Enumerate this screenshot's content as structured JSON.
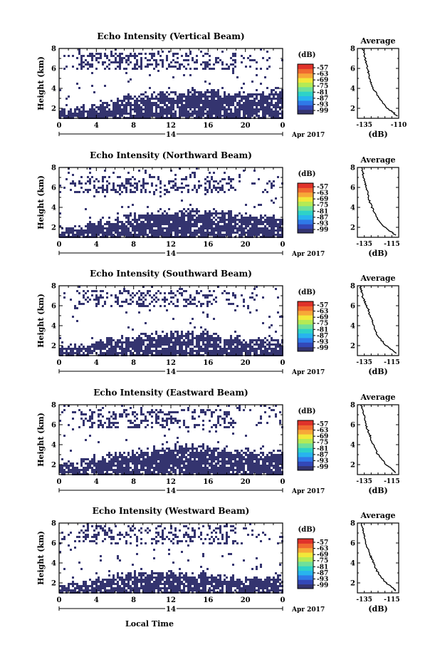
{
  "colors": {
    "background": "#ffffff",
    "echo_fill": "#34346f",
    "axis": "#000000",
    "colorbar": [
      "#34346f",
      "#3348b8",
      "#2f79e8",
      "#28b4ee",
      "#2ed2c8",
      "#6fe09a",
      "#b4ea55",
      "#f2e83a",
      "#f7a838",
      "#f06a30",
      "#e0322a"
    ]
  },
  "shared": {
    "x_label": "Local Time",
    "date_label": "Apr 2017",
    "day_label": "14",
    "x_ticks": [
      "0",
      "4",
      "8",
      "12",
      "16",
      "20",
      "0"
    ],
    "y_label": "Height (km)",
    "y_ticks": [
      "2",
      "4",
      "6",
      "8"
    ],
    "colorbar_unit": "(dB)",
    "colorbar_ticks": [
      "-57",
      "-63",
      "-69",
      "-75",
      "-81",
      "-87",
      "-93",
      "-99"
    ],
    "avg_title": "Average",
    "avg_xlabel": "(dB)",
    "avg_y_ticks": [
      "2",
      "4",
      "6",
      "8"
    ]
  },
  "panels": [
    {
      "title": "Echo Intensity (Vertical Beam)",
      "avg_ticks": [
        "-135",
        "-110"
      ]
    },
    {
      "title": "Echo Intensity (Northward Beam)",
      "avg_ticks": [
        "-135",
        "-115"
      ]
    },
    {
      "title": "Echo Intensity (Southward Beam)",
      "avg_ticks": [
        "-135",
        "-115"
      ]
    },
    {
      "title": "Echo Intensity (Eastward Beam)",
      "avg_ticks": [
        "-135",
        "-115"
      ]
    },
    {
      "title": "Echo Intensity (Westward Beam)",
      "avg_ticks": [
        "-135",
        "-115"
      ]
    }
  ],
  "chart_data": [
    {
      "type": "heatmap",
      "title": "Echo Intensity (Vertical Beam)",
      "xlabel": "Local Time",
      "ylabel": "Height (km)",
      "xlim": [
        0,
        24
      ],
      "ylim": [
        1,
        8
      ],
      "lower_layer_top_km": [
        2.0,
        2.2,
        2.4,
        2.6,
        2.8,
        3.0,
        3.2,
        3.3,
        3.4,
        3.5,
        3.6,
        3.7,
        3.8,
        3.9,
        3.9,
        3.9,
        3.9,
        3.8,
        3.8,
        3.7,
        3.7,
        3.8,
        3.9,
        4.0
      ],
      "upper_layer_km": [
        6.0,
        7.6
      ]
    },
    {
      "type": "line",
      "title": "Average",
      "xlabel": "(dB)",
      "xlim": [
        -140,
        -110
      ],
      "ylim": [
        1,
        8
      ],
      "series": [
        {
          "x": [
            -136,
            -135,
            -134,
            -133,
            -132,
            -131,
            -130,
            -128,
            -125,
            -122,
            -118,
            -114,
            -111
          ],
          "y": [
            8.0,
            7.4,
            6.8,
            6.2,
            5.6,
            5.0,
            4.5,
            3.9,
            3.2,
            2.6,
            2.0,
            1.6,
            1.2
          ]
        }
      ]
    },
    {
      "type": "heatmap",
      "title": "Echo Intensity (Northward Beam)",
      "xlabel": "Local Time",
      "ylabel": "Height (km)",
      "xlim": [
        0,
        24
      ],
      "ylim": [
        1,
        8
      ],
      "lower_layer_top_km": [
        2.2,
        2.3,
        2.5,
        2.6,
        2.8,
        3.0,
        3.2,
        3.4,
        3.5,
        3.6,
        3.7,
        3.8,
        3.8,
        3.9,
        3.9,
        3.8,
        3.8,
        3.7,
        3.6,
        3.5,
        3.4,
        3.3,
        3.2,
        3.0
      ],
      "upper_layer_km": [
        5.6,
        7.2
      ]
    },
    {
      "type": "line",
      "title": "Average",
      "xlabel": "(dB)",
      "xlim": [
        -140,
        -110
      ],
      "ylim": [
        1,
        8
      ],
      "series": [
        {
          "x": [
            -137,
            -136,
            -135,
            -134,
            -133,
            -132,
            -131,
            -129,
            -127,
            -124,
            -120,
            -116,
            -112
          ],
          "y": [
            8.0,
            7.4,
            6.8,
            6.2,
            5.6,
            5.0,
            4.5,
            3.9,
            3.2,
            2.6,
            2.0,
            1.6,
            1.2
          ]
        }
      ]
    },
    {
      "type": "heatmap",
      "title": "Echo Intensity (Southward Beam)",
      "xlabel": "Local Time",
      "ylabel": "Height (km)",
      "xlim": [
        0,
        24
      ],
      "ylim": [
        1,
        8
      ],
      "lower_layer_top_km": [
        2.0,
        2.1,
        2.3,
        2.5,
        2.7,
        2.9,
        3.0,
        3.1,
        3.2,
        3.3,
        3.4,
        3.5,
        3.5,
        3.5,
        3.4,
        3.4,
        3.3,
        3.2,
        3.1,
        3.0,
        2.9,
        2.8,
        2.8,
        2.9
      ],
      "upper_layer_km": [
        6.0,
        7.6
      ]
    },
    {
      "type": "line",
      "title": "Average",
      "xlabel": "(dB)",
      "xlim": [
        -140,
        -110
      ],
      "ylim": [
        1,
        8
      ],
      "series": [
        {
          "x": [
            -138,
            -137,
            -136,
            -134,
            -132,
            -131,
            -129,
            -128,
            -126,
            -123,
            -119,
            -115,
            -112
          ],
          "y": [
            8.0,
            7.4,
            6.8,
            6.2,
            5.6,
            5.0,
            4.5,
            3.9,
            3.2,
            2.6,
            2.0,
            1.6,
            1.2
          ]
        }
      ]
    },
    {
      "type": "heatmap",
      "title": "Echo Intensity (Eastward Beam)",
      "xlabel": "Local Time",
      "ylabel": "Height (km)",
      "xlim": [
        0,
        24
      ],
      "ylim": [
        1,
        8
      ],
      "lower_layer_top_km": [
        2.3,
        2.4,
        2.6,
        2.8,
        3.0,
        3.2,
        3.4,
        3.5,
        3.6,
        3.7,
        3.8,
        3.9,
        4.0,
        4.0,
        4.0,
        4.0,
        3.9,
        3.8,
        3.7,
        3.6,
        3.5,
        3.4,
        3.5,
        3.7
      ],
      "upper_layer_km": [
        5.8,
        7.6
      ]
    },
    {
      "type": "line",
      "title": "Average",
      "xlabel": "(dB)",
      "xlim": [
        -140,
        -110
      ],
      "ylim": [
        1,
        8
      ],
      "series": [
        {
          "x": [
            -137,
            -136,
            -135,
            -134,
            -133,
            -131,
            -130,
            -128,
            -126,
            -123,
            -119,
            -115,
            -112
          ],
          "y": [
            8.0,
            7.4,
            6.8,
            6.2,
            5.6,
            5.0,
            4.5,
            3.9,
            3.2,
            2.6,
            2.0,
            1.6,
            1.2
          ]
        }
      ]
    },
    {
      "type": "heatmap",
      "title": "Echo Intensity (Westward Beam)",
      "xlabel": "Local Time",
      "ylabel": "Height (km)",
      "xlim": [
        0,
        24
      ],
      "ylim": [
        1,
        8
      ],
      "lower_layer_top_km": [
        2.0,
        2.1,
        2.3,
        2.5,
        2.7,
        2.9,
        3.0,
        3.1,
        3.2,
        3.2,
        3.3,
        3.3,
        3.3,
        3.2,
        3.2,
        3.1,
        3.0,
        2.9,
        2.8,
        2.8,
        2.7,
        2.7,
        2.8,
        2.9
      ],
      "upper_layer_km": [
        6.0,
        7.8
      ]
    },
    {
      "type": "line",
      "title": "Average",
      "xlabel": "(dB)",
      "xlim": [
        -140,
        -110
      ],
      "ylim": [
        1,
        8
      ],
      "series": [
        {
          "x": [
            -137,
            -136,
            -135,
            -134,
            -133,
            -131,
            -130,
            -128,
            -126,
            -123,
            -119,
            -115,
            -112
          ],
          "y": [
            8.0,
            7.4,
            6.8,
            6.2,
            5.6,
            5.0,
            4.5,
            3.9,
            3.2,
            2.6,
            2.0,
            1.6,
            1.2
          ]
        }
      ]
    }
  ]
}
